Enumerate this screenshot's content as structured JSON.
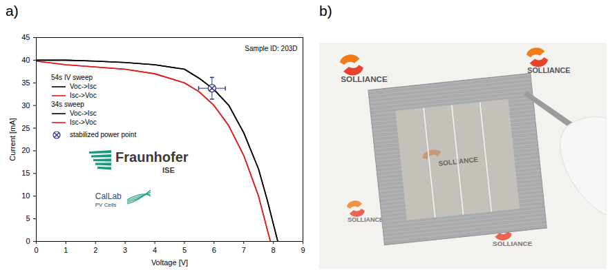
{
  "chart_data": {
    "type": "line",
    "panel_label": "a)",
    "x_label": "Voltage [V]",
    "y_label": "Current [mA]",
    "xlim": [
      0,
      9
    ],
    "xticks": [
      0,
      1,
      2,
      3,
      4,
      5,
      6,
      7,
      8,
      9
    ],
    "ylim": [
      0,
      45
    ],
    "yticks": [
      0,
      5,
      10,
      15,
      20,
      25,
      30,
      35,
      40,
      45
    ],
    "annotations": [
      "Sample ID: 203D"
    ],
    "logos": [
      {
        "name": "Fraunhofer",
        "sub": "ISE",
        "color": "#179c7d"
      },
      {
        "name": "CalLab",
        "sub": "PV Cells",
        "color": "#179c7d"
      }
    ],
    "legend": "upper left",
    "series": [
      {
        "name": "Voc->Isc",
        "group": "54s IV sweep",
        "color": "#000000",
        "x": [
          0,
          1,
          2,
          3,
          4,
          5,
          5.5,
          6,
          6.5,
          7,
          7.5,
          7.8,
          8.15
        ],
        "values": [
          40,
          40,
          39.8,
          39.5,
          39,
          38,
          36,
          33.5,
          30,
          24,
          16,
          9,
          0
        ]
      },
      {
        "name": "Isc->Voc",
        "group": "54s IV sweep",
        "color": "#e31a1c",
        "x": [
          0,
          1,
          2,
          3,
          4,
          5,
          5.5,
          6,
          6.5,
          7,
          7.5,
          7.9
        ],
        "values": [
          39.8,
          39,
          38.5,
          38,
          37,
          35,
          33,
          30,
          25.5,
          19,
          10,
          0
        ]
      },
      {
        "name": "Voc->Isc",
        "group": "34s sweep",
        "color": "#000000",
        "x": [
          0,
          1,
          2,
          3,
          4,
          5,
          5.5,
          6,
          6.5,
          7,
          7.5,
          7.8,
          8.15
        ],
        "values": [
          40,
          40,
          39.8,
          39.5,
          39,
          38,
          36,
          33.5,
          30,
          24,
          16,
          9,
          0
        ]
      },
      {
        "name": "Isc->Voc",
        "group": "34s sweep",
        "color": "#e31a1c",
        "x": [
          0,
          1,
          2,
          3,
          4,
          5,
          5.5,
          6,
          6.5,
          7,
          7.5,
          7.9
        ],
        "values": [
          39.8,
          39,
          38.5,
          38,
          37,
          35,
          33,
          30,
          25.5,
          19,
          10,
          0
        ]
      }
    ],
    "points": [
      {
        "name": "stabilized power point",
        "x": 5.93,
        "y": 33.8,
        "x_error": 0.45,
        "y_error": 2.4,
        "marker": "circle-x",
        "color": "#2b2b8c"
      }
    ]
  },
  "photo": {
    "panel_label": "b)",
    "logo_text": "SOLLIANCE",
    "logo_color": "#f07d1a"
  }
}
